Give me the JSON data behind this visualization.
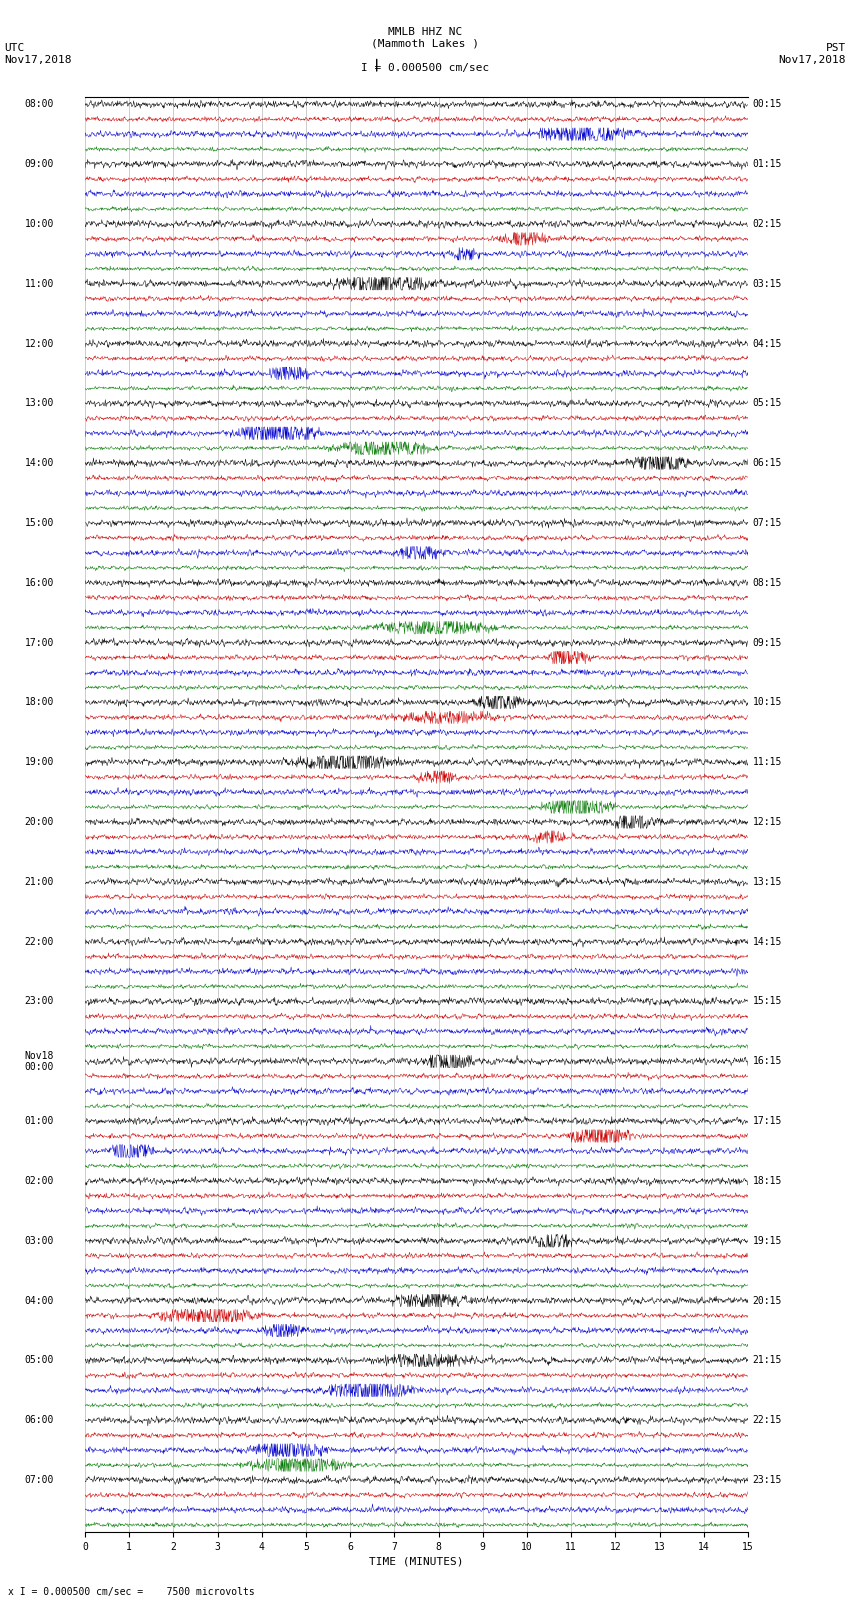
{
  "title_line1": "MMLB HHZ NC",
  "title_line2": "(Mammoth Lakes )",
  "scale_label": "I = 0.000500 cm/sec",
  "utc_label": "UTC\nNov17,2018",
  "pst_label": "PST\nNov17,2018",
  "xlabel": "TIME (MINUTES)",
  "footnote": "x I = 0.000500 cm/sec =    7500 microvolts",
  "left_times": [
    "08:00",
    "09:00",
    "10:00",
    "11:00",
    "12:00",
    "13:00",
    "14:00",
    "15:00",
    "16:00",
    "17:00",
    "18:00",
    "19:00",
    "20:00",
    "21:00",
    "22:00",
    "23:00",
    "Nov18\n00:00",
    "01:00",
    "02:00",
    "03:00",
    "04:00",
    "05:00",
    "06:00",
    "07:00"
  ],
  "right_times": [
    "00:15",
    "01:15",
    "02:15",
    "03:15",
    "04:15",
    "05:15",
    "06:15",
    "07:15",
    "08:15",
    "09:15",
    "10:15",
    "11:15",
    "12:15",
    "13:15",
    "14:15",
    "15:15",
    "16:15",
    "17:15",
    "18:15",
    "19:15",
    "20:15",
    "21:15",
    "22:15",
    "23:15"
  ],
  "bg_color": "#ffffff",
  "trace_colors": [
    "#000000",
    "#cc0000",
    "#0000cc",
    "#007700"
  ],
  "grid_color": "#999999",
  "n_hours": 24,
  "n_traces_per_hour": 4,
  "x_min": 0,
  "x_max": 15,
  "x_ticks": [
    0,
    1,
    2,
    3,
    4,
    5,
    6,
    7,
    8,
    9,
    10,
    11,
    12,
    13,
    14,
    15
  ],
  "noise_scale": [
    0.25,
    0.18,
    0.22,
    0.15
  ],
  "title_fontsize": 8,
  "label_fontsize": 7,
  "tick_fontsize": 7
}
